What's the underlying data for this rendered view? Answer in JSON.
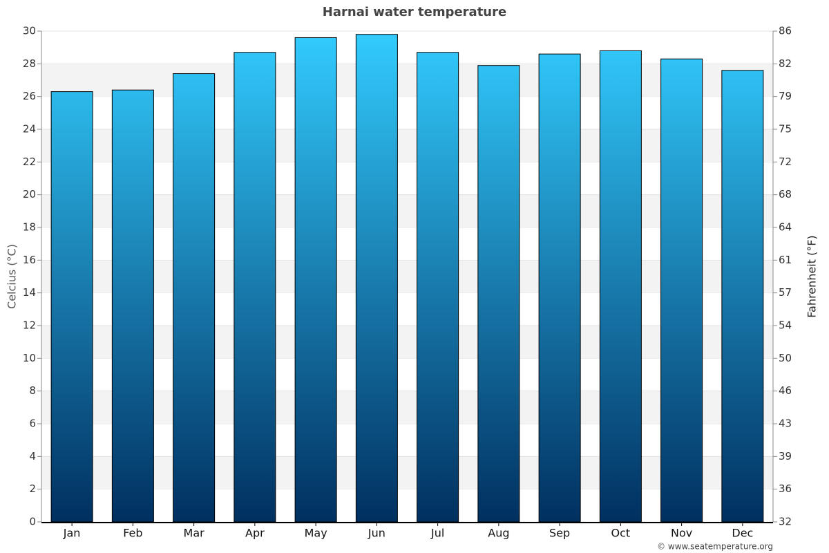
{
  "chart_data": {
    "type": "bar",
    "title": "Harnai water temperature",
    "y_label": "Celcius (°C)",
    "y2_label": "Fahrenheit (°F)",
    "credit": "© www.seatemperature.org",
    "categories": [
      "Jan",
      "Feb",
      "Mar",
      "Apr",
      "May",
      "Jun",
      "Jul",
      "Aug",
      "Sep",
      "Oct",
      "Nov",
      "Dec"
    ],
    "values": [
      26.3,
      26.4,
      27.4,
      28.7,
      29.6,
      29.8,
      28.7,
      27.9,
      28.6,
      28.8,
      28.3,
      27.6
    ],
    "color_top": "#33ccff",
    "color_bottom": "#003060",
    "ylim": [
      0,
      30
    ],
    "yticks": [
      0,
      2,
      4,
      6,
      8,
      10,
      12,
      14,
      16,
      18,
      20,
      22,
      24,
      26,
      28,
      30
    ],
    "y2lim": [
      32,
      86
    ],
    "y2ticks": [
      32,
      {
        "value": 35.6,
        "label": "36"
      },
      {
        "value": 39.2,
        "label": "39"
      },
      {
        "value": 42.8,
        "label": "43"
      },
      {
        "value": 46.4,
        "label": "46"
      },
      50,
      {
        "value": 53.6,
        "label": "54"
      },
      {
        "value": 57.2,
        "label": "57"
      },
      {
        "value": 60.8,
        "label": "61"
      },
      {
        "value": 64.4,
        "label": "64"
      },
      68,
      {
        "value": 71.6,
        "label": "72"
      },
      {
        "value": 75.2,
        "label": "75"
      },
      {
        "value": 78.8,
        "label": "79"
      },
      {
        "value": 82.4,
        "label": "82"
      },
      86
    ],
    "grid": true
  }
}
